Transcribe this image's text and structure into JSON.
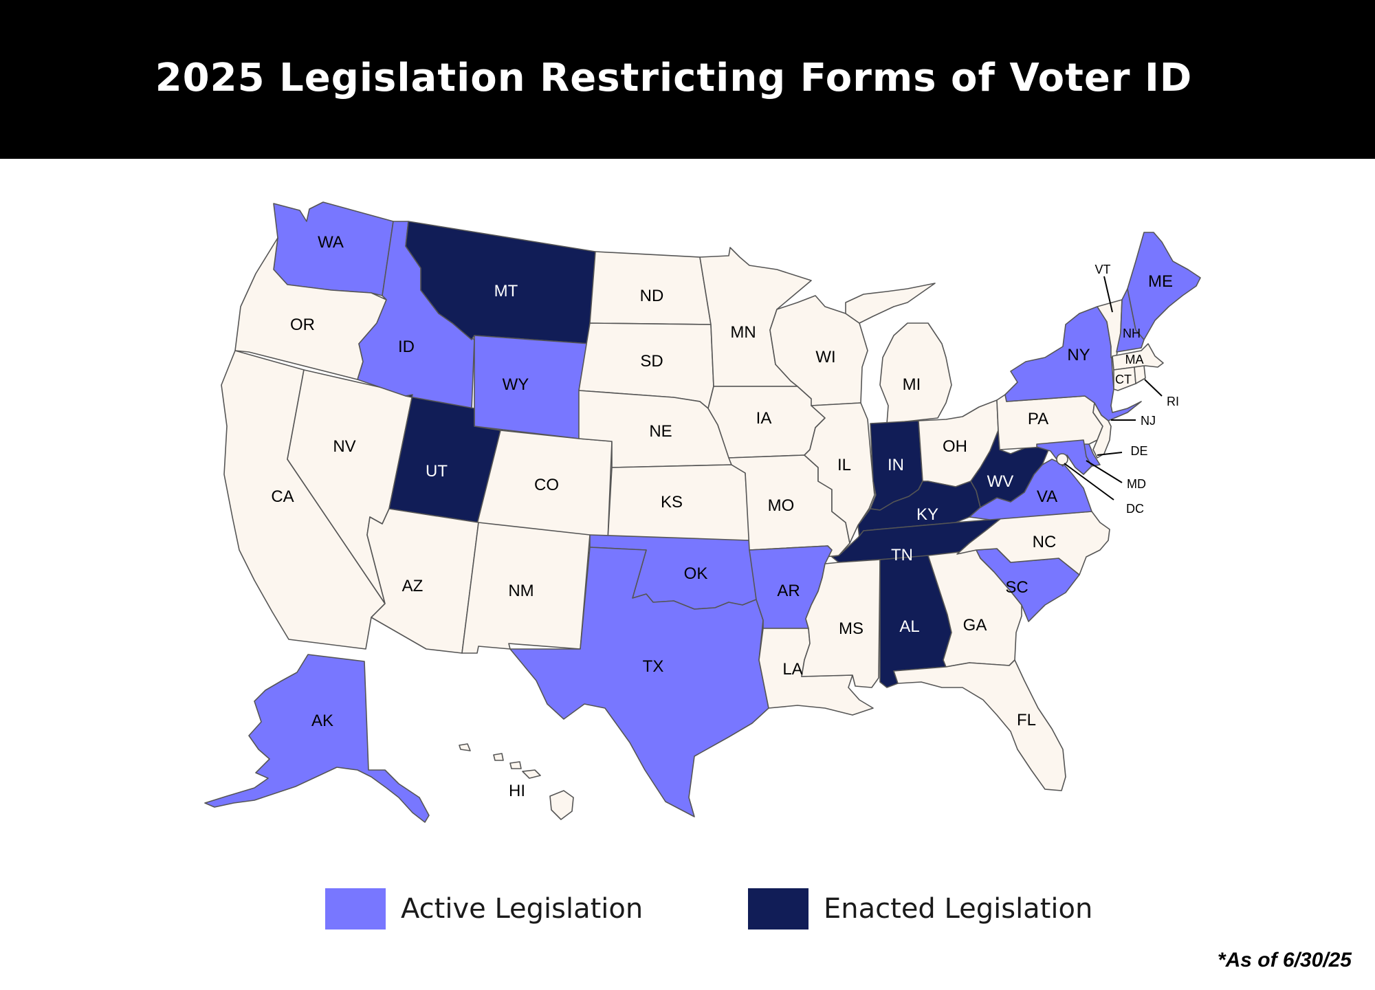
{
  "title": "2025 Legislation Restricting Forms of Voter ID",
  "note": "*As of 6/30/25",
  "colors": {
    "none": "#fcf6ef",
    "active": "#7877ff",
    "enacted": "#111d57",
    "text_light": "#000000",
    "text_dark": "#ffffff"
  },
  "legend": {
    "active_label": "Active Legislation",
    "enacted_label": "Enacted Legislation"
  },
  "statuses": {
    "WA": "active",
    "OR": "none",
    "CA": "none",
    "NV": "none",
    "ID": "active",
    "MT": "enacted",
    "WY": "active",
    "UT": "enacted",
    "CO": "none",
    "AZ": "none",
    "NM": "none",
    "ND": "none",
    "SD": "none",
    "NE": "none",
    "KS": "none",
    "OK": "active",
    "TX": "active",
    "MN": "none",
    "IA": "none",
    "MO": "none",
    "AR": "active",
    "LA": "none",
    "WI": "none",
    "IL": "none",
    "MI": "none",
    "IN": "enacted",
    "OH": "none",
    "KY": "enacted",
    "TN": "enacted",
    "MS": "none",
    "AL": "enacted",
    "GA": "none",
    "FL": "none",
    "SC": "active",
    "NC": "none",
    "VA": "active",
    "WV": "enacted",
    "PA": "none",
    "NY": "active",
    "VT": "none",
    "NH": "active",
    "ME": "active",
    "MA": "none",
    "CT": "none",
    "RI": "none",
    "NJ": "none",
    "DE": "active",
    "MD": "active",
    "DC": "none",
    "AK": "active",
    "HI": "none"
  },
  "labels": {
    "WA": "WA",
    "OR": "OR",
    "CA": "CA",
    "NV": "NV",
    "ID": "ID",
    "MT": "MT",
    "WY": "WY",
    "UT": "UT",
    "CO": "CO",
    "AZ": "AZ",
    "NM": "NM",
    "ND": "ND",
    "SD": "SD",
    "NE": "NE",
    "KS": "KS",
    "OK": "OK",
    "TX": "TX",
    "MN": "MN",
    "IA": "IA",
    "MO": "MO",
    "AR": "AR",
    "LA": "LA",
    "WI": "WI",
    "IL": "IL",
    "MI": "MI",
    "IN": "IN",
    "OH": "OH",
    "KY": "KY",
    "TN": "TN",
    "MS": "MS",
    "AL": "AL",
    "GA": "GA",
    "FL": "FL",
    "SC": "SC",
    "NC": "NC",
    "VA": "VA",
    "WV": "WV",
    "PA": "PA",
    "NY": "NY",
    "VT": "VT",
    "NH": "NH",
    "ME": "ME",
    "MA": "MA",
    "CT": "CT",
    "RI": "RI",
    "NJ": "NJ",
    "DE": "DE",
    "MD": "MD",
    "DC": "DC",
    "AK": "AK",
    "HI": "HI"
  }
}
